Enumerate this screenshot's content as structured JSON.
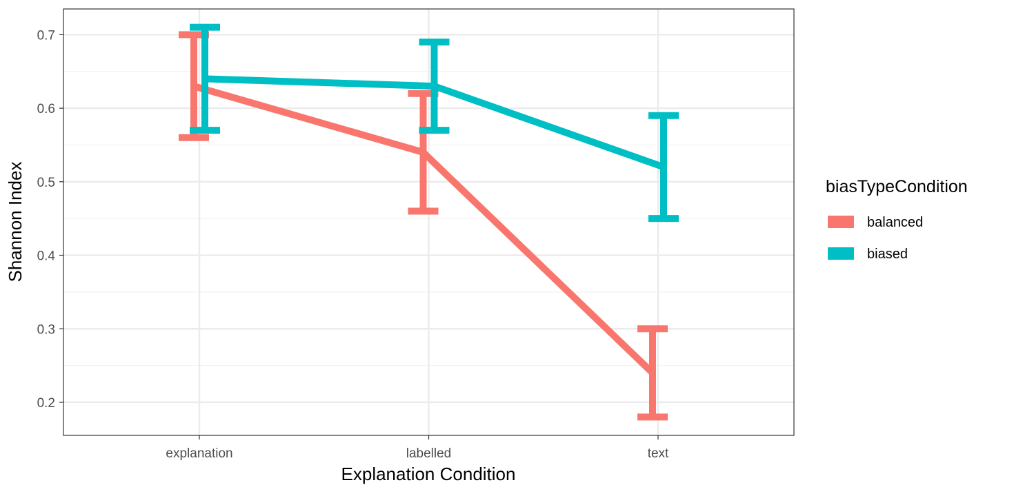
{
  "chart_data": {
    "type": "line",
    "title": "",
    "xlabel": "Explanation Condition",
    "ylabel": "Shannon Index",
    "categories": [
      "explanation",
      "labelled",
      "text"
    ],
    "ylim": [
      0.155,
      0.735
    ],
    "yticks": [
      0.2,
      0.3,
      0.4,
      0.5,
      0.6,
      0.7
    ],
    "ytick_labels": [
      "0.2",
      "0.3",
      "0.4",
      "0.5",
      "0.6",
      "0.7"
    ],
    "grid": true,
    "legend": {
      "title": "biasTypeCondition",
      "placement": "right"
    },
    "error_bars": true,
    "series": [
      {
        "name": "balanced",
        "color": "#F8766D",
        "values": [
          0.63,
          0.54,
          0.24
        ],
        "lower": [
          0.56,
          0.46,
          0.18
        ],
        "upper": [
          0.7,
          0.62,
          0.3
        ]
      },
      {
        "name": "biased",
        "color": "#00BFC4",
        "values": [
          0.64,
          0.63,
          0.52
        ],
        "lower": [
          0.57,
          0.57,
          0.45
        ],
        "upper": [
          0.71,
          0.69,
          0.59
        ]
      }
    ]
  }
}
